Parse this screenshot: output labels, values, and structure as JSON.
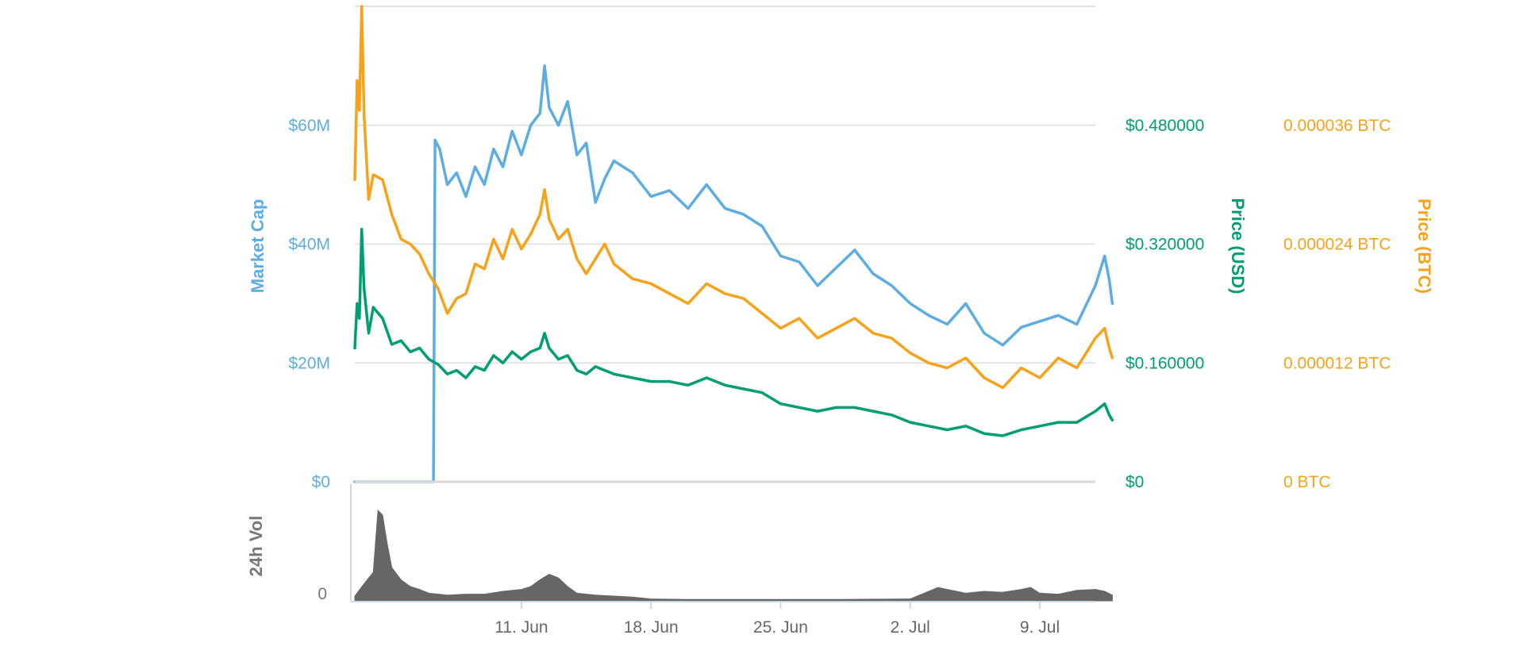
{
  "chart_data": {
    "type": "line",
    "x_start": "2018-06-02",
    "x_end": "2018-07-12",
    "x_ticks": [
      "11. Jun",
      "18. Jun",
      "25. Jun",
      "2. Jul",
      "9. Jul"
    ],
    "x_tick_dates": [
      "2018-06-11",
      "2018-06-18",
      "2018-06-25",
      "2018-07-02",
      "2018-07-09"
    ],
    "grid": true,
    "y_axes": {
      "market_cap": {
        "title": "Market Cap",
        "ticks": [
          "$0",
          "$20M",
          "$40M",
          "$60M"
        ],
        "range": [
          0,
          80000000
        ],
        "color": "#5DADE2"
      },
      "price_usd": {
        "title": "Price (USD)",
        "ticks": [
          "$0",
          "$0.160000",
          "$0.320000",
          "$0.480000"
        ],
        "range": [
          0,
          0.64
        ],
        "color": "#009E73"
      },
      "price_btc": {
        "title": "Price (BTC)",
        "ticks": [
          "0 BTC",
          "0.000012 BTC",
          "0.000024 BTC",
          "0.000036 BTC"
        ],
        "range": [
          0,
          4.8e-05
        ],
        "color": "#F7A21B"
      },
      "volume": {
        "title": "24h Vol",
        "ticks": [
          "0"
        ],
        "color": "#777777"
      }
    },
    "series": [
      {
        "key": "market_cap",
        "axis": "market_cap",
        "color": "#5DADE2",
        "points": [
          [
            "2018-06-02",
            0
          ],
          [
            "2018-06-06",
            0
          ],
          [
            "2018-06-06T06:00",
            0
          ],
          [
            "2018-06-06T08:00",
            57500000
          ],
          [
            "2018-06-06T14:00",
            56000000
          ],
          [
            "2018-06-07",
            50000000
          ],
          [
            "2018-06-07T12:00",
            52000000
          ],
          [
            "2018-06-08",
            48000000
          ],
          [
            "2018-06-08T12:00",
            53000000
          ],
          [
            "2018-06-09",
            50000000
          ],
          [
            "2018-06-09T12:00",
            56000000
          ],
          [
            "2018-06-10",
            53000000
          ],
          [
            "2018-06-10T12:00",
            59000000
          ],
          [
            "2018-06-11",
            55000000
          ],
          [
            "2018-06-11T12:00",
            60000000
          ],
          [
            "2018-06-12",
            62000000
          ],
          [
            "2018-06-12T06:00",
            70000000
          ],
          [
            "2018-06-12T12:00",
            63000000
          ],
          [
            "2018-06-13",
            60000000
          ],
          [
            "2018-06-13T12:00",
            64000000
          ],
          [
            "2018-06-14",
            55000000
          ],
          [
            "2018-06-14T12:00",
            57000000
          ],
          [
            "2018-06-15",
            47000000
          ],
          [
            "2018-06-15T12:00",
            51000000
          ],
          [
            "2018-06-16",
            54000000
          ],
          [
            "2018-06-17",
            52000000
          ],
          [
            "2018-06-18",
            48000000
          ],
          [
            "2018-06-19",
            49000000
          ],
          [
            "2018-06-20",
            46000000
          ],
          [
            "2018-06-21",
            50000000
          ],
          [
            "2018-06-22",
            46000000
          ],
          [
            "2018-06-23",
            45000000
          ],
          [
            "2018-06-24",
            43000000
          ],
          [
            "2018-06-25",
            38000000
          ],
          [
            "2018-06-26",
            37000000
          ],
          [
            "2018-06-27",
            33000000
          ],
          [
            "2018-06-28",
            36000000
          ],
          [
            "2018-06-29",
            39000000
          ],
          [
            "2018-06-30",
            35000000
          ],
          [
            "2018-07-01",
            33000000
          ],
          [
            "2018-07-02",
            30000000
          ],
          [
            "2018-07-03",
            28000000
          ],
          [
            "2018-07-04",
            26500000
          ],
          [
            "2018-07-05",
            30000000
          ],
          [
            "2018-07-06",
            25000000
          ],
          [
            "2018-07-07",
            23000000
          ],
          [
            "2018-07-08",
            26000000
          ],
          [
            "2018-07-09",
            27000000
          ],
          [
            "2018-07-10",
            28000000
          ],
          [
            "2018-07-11",
            26500000
          ],
          [
            "2018-07-12",
            33000000
          ],
          [
            "2018-07-12T12:00",
            38000000
          ],
          [
            "2018-07-12T18:00",
            34000000
          ],
          [
            "2018-07-12T22:00",
            30000000
          ]
        ]
      },
      {
        "key": "price_btc",
        "axis": "price_btc",
        "color": "#F7A21B",
        "points": [
          [
            "2018-06-02",
            3.05e-05
          ],
          [
            "2018-06-02T03:00",
            4.05e-05
          ],
          [
            "2018-06-02T06:00",
            3.75e-05
          ],
          [
            "2018-06-02T09:00",
            4.8e-05
          ],
          [
            "2018-06-02T12:00",
            3.7e-05
          ],
          [
            "2018-06-02T18:00",
            2.85e-05
          ],
          [
            "2018-06-03",
            3.1e-05
          ],
          [
            "2018-06-03T12:00",
            3.05e-05
          ],
          [
            "2018-06-04",
            2.7e-05
          ],
          [
            "2018-06-04T12:00",
            2.45e-05
          ],
          [
            "2018-06-05",
            2.4e-05
          ],
          [
            "2018-06-05T12:00",
            2.3e-05
          ],
          [
            "2018-06-06",
            2.1e-05
          ],
          [
            "2018-06-06T12:00",
            1.95e-05
          ],
          [
            "2018-06-07",
            1.7e-05
          ],
          [
            "2018-06-07T12:00",
            1.85e-05
          ],
          [
            "2018-06-08",
            1.9e-05
          ],
          [
            "2018-06-08T12:00",
            2.2e-05
          ],
          [
            "2018-06-09",
            2.15e-05
          ],
          [
            "2018-06-09T12:00",
            2.45e-05
          ],
          [
            "2018-06-10",
            2.25e-05
          ],
          [
            "2018-06-10T12:00",
            2.55e-05
          ],
          [
            "2018-06-11",
            2.35e-05
          ],
          [
            "2018-06-11T12:00",
            2.5e-05
          ],
          [
            "2018-06-12",
            2.7e-05
          ],
          [
            "2018-06-12T06:00",
            2.95e-05
          ],
          [
            "2018-06-12T12:00",
            2.65e-05
          ],
          [
            "2018-06-13",
            2.45e-05
          ],
          [
            "2018-06-13T12:00",
            2.55e-05
          ],
          [
            "2018-06-14",
            2.25e-05
          ],
          [
            "2018-06-14T12:00",
            2.1e-05
          ],
          [
            "2018-06-15",
            2.25e-05
          ],
          [
            "2018-06-15T12:00",
            2.4e-05
          ],
          [
            "2018-06-16",
            2.2e-05
          ],
          [
            "2018-06-17",
            2.05e-05
          ],
          [
            "2018-06-18",
            2e-05
          ],
          [
            "2018-06-19",
            1.9e-05
          ],
          [
            "2018-06-20",
            1.8e-05
          ],
          [
            "2018-06-21",
            2e-05
          ],
          [
            "2018-06-22",
            1.9e-05
          ],
          [
            "2018-06-23",
            1.85e-05
          ],
          [
            "2018-06-24",
            1.7e-05
          ],
          [
            "2018-06-25",
            1.55e-05
          ],
          [
            "2018-06-26",
            1.65e-05
          ],
          [
            "2018-06-27",
            1.45e-05
          ],
          [
            "2018-06-28",
            1.55e-05
          ],
          [
            "2018-06-29",
            1.65e-05
          ],
          [
            "2018-06-30",
            1.5e-05
          ],
          [
            "2018-07-01",
            1.45e-05
          ],
          [
            "2018-07-02",
            1.3e-05
          ],
          [
            "2018-07-03",
            1.2e-05
          ],
          [
            "2018-07-04",
            1.15e-05
          ],
          [
            "2018-07-05",
            1.25e-05
          ],
          [
            "2018-07-06",
            1.05e-05
          ],
          [
            "2018-07-07",
            9.5e-06
          ],
          [
            "2018-07-08",
            1.15e-05
          ],
          [
            "2018-07-09",
            1.05e-05
          ],
          [
            "2018-07-10",
            1.25e-05
          ],
          [
            "2018-07-11",
            1.15e-05
          ],
          [
            "2018-07-12",
            1.45e-05
          ],
          [
            "2018-07-12T12:00",
            1.55e-05
          ],
          [
            "2018-07-12T18:00",
            1.35e-05
          ],
          [
            "2018-07-12T22:00",
            1.25e-05
          ]
        ]
      },
      {
        "key": "price_usd",
        "axis": "price_usd",
        "color": "#009E73",
        "points": [
          [
            "2018-06-02",
            0.18
          ],
          [
            "2018-06-02T03:00",
            0.24
          ],
          [
            "2018-06-02T06:00",
            0.22
          ],
          [
            "2018-06-02T09:00",
            0.34
          ],
          [
            "2018-06-02T12:00",
            0.26
          ],
          [
            "2018-06-02T18:00",
            0.2
          ],
          [
            "2018-06-03",
            0.235
          ],
          [
            "2018-06-03T12:00",
            0.22
          ],
          [
            "2018-06-04",
            0.185
          ],
          [
            "2018-06-04T12:00",
            0.19
          ],
          [
            "2018-06-05",
            0.175
          ],
          [
            "2018-06-05T12:00",
            0.18
          ],
          [
            "2018-06-06",
            0.165
          ],
          [
            "2018-06-06T12:00",
            0.158
          ],
          [
            "2018-06-07",
            0.145
          ],
          [
            "2018-06-07T12:00",
            0.15
          ],
          [
            "2018-06-08",
            0.14
          ],
          [
            "2018-06-08T12:00",
            0.155
          ],
          [
            "2018-06-09",
            0.15
          ],
          [
            "2018-06-09T12:00",
            0.17
          ],
          [
            "2018-06-10",
            0.16
          ],
          [
            "2018-06-10T12:00",
            0.175
          ],
          [
            "2018-06-11",
            0.165
          ],
          [
            "2018-06-11T12:00",
            0.175
          ],
          [
            "2018-06-12",
            0.18
          ],
          [
            "2018-06-12T06:00",
            0.2
          ],
          [
            "2018-06-12T12:00",
            0.18
          ],
          [
            "2018-06-13",
            0.165
          ],
          [
            "2018-06-13T12:00",
            0.17
          ],
          [
            "2018-06-14",
            0.15
          ],
          [
            "2018-06-14T12:00",
            0.145
          ],
          [
            "2018-06-15",
            0.155
          ],
          [
            "2018-06-15T12:00",
            0.15
          ],
          [
            "2018-06-16",
            0.145
          ],
          [
            "2018-06-17",
            0.14
          ],
          [
            "2018-06-18",
            0.135
          ],
          [
            "2018-06-19",
            0.135
          ],
          [
            "2018-06-20",
            0.13
          ],
          [
            "2018-06-21",
            0.14
          ],
          [
            "2018-06-22",
            0.13
          ],
          [
            "2018-06-23",
            0.125
          ],
          [
            "2018-06-24",
            0.12
          ],
          [
            "2018-06-25",
            0.105
          ],
          [
            "2018-06-26",
            0.1
          ],
          [
            "2018-06-27",
            0.095
          ],
          [
            "2018-06-28",
            0.1
          ],
          [
            "2018-06-29",
            0.1
          ],
          [
            "2018-06-30",
            0.095
          ],
          [
            "2018-07-01",
            0.09
          ],
          [
            "2018-07-02",
            0.08
          ],
          [
            "2018-07-03",
            0.075
          ],
          [
            "2018-07-04",
            0.07
          ],
          [
            "2018-07-05",
            0.075
          ],
          [
            "2018-07-06",
            0.065
          ],
          [
            "2018-07-07",
            0.062
          ],
          [
            "2018-07-08",
            0.07
          ],
          [
            "2018-07-09",
            0.075
          ],
          [
            "2018-07-10",
            0.08
          ],
          [
            "2018-07-11",
            0.08
          ],
          [
            "2018-07-12",
            0.095
          ],
          [
            "2018-07-12T12:00",
            0.105
          ],
          [
            "2018-07-12T18:00",
            0.09
          ],
          [
            "2018-07-12T22:00",
            0.083
          ]
        ]
      },
      {
        "key": "volume",
        "axis": "volume",
        "type": "area",
        "color": "#666666",
        "points": [
          [
            "2018-06-02",
            0.05
          ],
          [
            "2018-06-02T12:00",
            0.18
          ],
          [
            "2018-06-03",
            0.3
          ],
          [
            "2018-06-03T06:00",
            0.95
          ],
          [
            "2018-06-03T12:00",
            0.9
          ],
          [
            "2018-06-03T18:00",
            0.6
          ],
          [
            "2018-06-04",
            0.35
          ],
          [
            "2018-06-04T12:00",
            0.22
          ],
          [
            "2018-06-05",
            0.15
          ],
          [
            "2018-06-05T12:00",
            0.12
          ],
          [
            "2018-06-06",
            0.08
          ],
          [
            "2018-06-07",
            0.06
          ],
          [
            "2018-06-08",
            0.07
          ],
          [
            "2018-06-09",
            0.07
          ],
          [
            "2018-06-10",
            0.1
          ],
          [
            "2018-06-11",
            0.12
          ],
          [
            "2018-06-11T12:00",
            0.15
          ],
          [
            "2018-06-12",
            0.22
          ],
          [
            "2018-06-12T12:00",
            0.28
          ],
          [
            "2018-06-13",
            0.24
          ],
          [
            "2018-06-13T12:00",
            0.15
          ],
          [
            "2018-06-14",
            0.08
          ],
          [
            "2018-06-15",
            0.06
          ],
          [
            "2018-06-16",
            0.05
          ],
          [
            "2018-06-17",
            0.04
          ],
          [
            "2018-06-18",
            0.02
          ],
          [
            "2018-06-20",
            0.015
          ],
          [
            "2018-06-24",
            0.015
          ],
          [
            "2018-06-28",
            0.015
          ],
          [
            "2018-07-02",
            0.02
          ],
          [
            "2018-07-03",
            0.1
          ],
          [
            "2018-07-03T12:00",
            0.14
          ],
          [
            "2018-07-04",
            0.12
          ],
          [
            "2018-07-05",
            0.08
          ],
          [
            "2018-07-06",
            0.1
          ],
          [
            "2018-07-07",
            0.09
          ],
          [
            "2018-07-08",
            0.12
          ],
          [
            "2018-07-08T12:00",
            0.14
          ],
          [
            "2018-07-09",
            0.08
          ],
          [
            "2018-07-10",
            0.07
          ],
          [
            "2018-07-11",
            0.11
          ],
          [
            "2018-07-12",
            0.12
          ],
          [
            "2018-07-12T12:00",
            0.1
          ],
          [
            "2018-07-12T22:00",
            0.06
          ]
        ]
      }
    ]
  }
}
